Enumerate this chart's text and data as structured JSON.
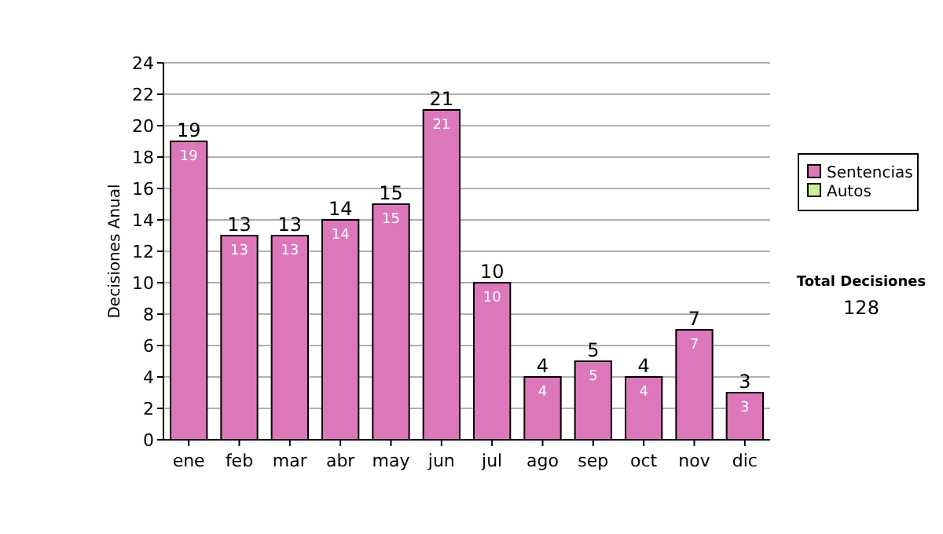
{
  "chart_data": {
    "type": "bar",
    "stacked": true,
    "ylabel": "Decisiones Anual",
    "categories": [
      "ene",
      "feb",
      "mar",
      "abr",
      "may",
      "jun",
      "jul",
      "ago",
      "sep",
      "oct",
      "nov",
      "dic"
    ],
    "series": [
      {
        "name": "Sentencias",
        "color": "#dd77bb",
        "values": [
          19,
          13,
          13,
          14,
          15,
          21,
          10,
          4,
          5,
          4,
          7,
          3
        ],
        "value_labels": [
          "19",
          "13",
          "13",
          "14",
          "15",
          "21",
          "10",
          "4",
          "5",
          "4",
          "7",
          "3"
        ]
      },
      {
        "name": "Autos",
        "color": "#ccee99",
        "values": [
          0,
          0,
          0,
          0,
          0,
          0,
          0,
          0,
          0,
          0,
          0,
          0
        ]
      }
    ],
    "totals": [
      "19",
      "13",
      "13",
      "14",
      "15",
      "21",
      "10",
      "4",
      "5",
      "4",
      "7",
      "3"
    ],
    "ylim": [
      0,
      24
    ],
    "yticks": [
      0,
      2,
      4,
      6,
      8,
      10,
      12,
      14,
      16,
      18,
      20,
      22,
      24
    ],
    "grid": "y",
    "legend": "right",
    "annotations": [
      "Total Decisiones",
      "128"
    ]
  }
}
